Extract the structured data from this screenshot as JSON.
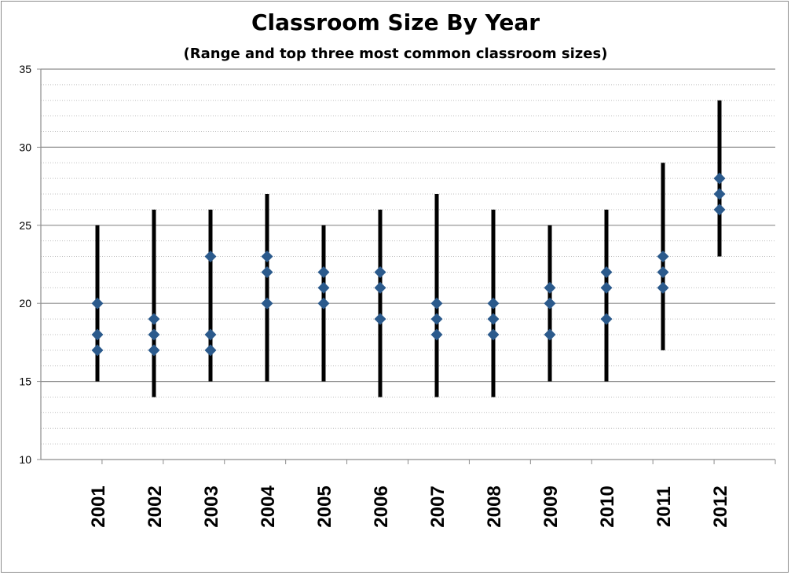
{
  "chart_data": {
    "type": "range",
    "title": "Classroom Size By Year",
    "subtitle": "(Range and top three most common classroom sizes)",
    "xlabel": "",
    "ylabel": "",
    "ylim": [
      10,
      35
    ],
    "yticks": [
      "10",
      "15",
      "20",
      "25",
      "30",
      "35"
    ],
    "grid": {
      "major": true,
      "minor": true
    },
    "categories": [
      "2001",
      "2002",
      "2003",
      "2004",
      "2005",
      "2006",
      "2007",
      "2008",
      "2009",
      "2010",
      "2011",
      "2012"
    ],
    "range_min": [
      15,
      14,
      15,
      15,
      15,
      14,
      14,
      14,
      15,
      15,
      17,
      23
    ],
    "range_max": [
      25,
      26,
      26,
      27,
      25,
      26,
      27,
      26,
      25,
      26,
      29,
      33
    ],
    "top_three": [
      [
        20,
        18,
        17
      ],
      [
        19,
        18,
        17
      ],
      [
        23,
        18,
        17
      ],
      [
        23,
        22,
        20
      ],
      [
        22,
        21,
        20
      ],
      [
        22,
        21,
        19
      ],
      [
        20,
        19,
        18
      ],
      [
        20,
        19,
        18
      ],
      [
        21,
        20,
        18
      ],
      [
        22,
        21,
        19
      ],
      [
        23,
        22,
        21
      ],
      [
        28,
        27,
        26
      ]
    ],
    "colors": {
      "range": "#000000",
      "marker": "#2b5a8c",
      "grid_major": "#8c8c8c",
      "grid_minor": "#bfbfbf",
      "axis": "#8c8c8c"
    }
  }
}
